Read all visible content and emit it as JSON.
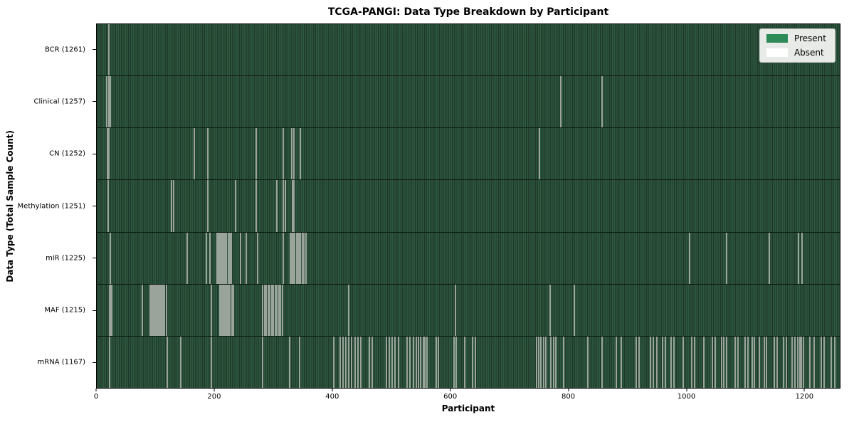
{
  "chart_data": {
    "type": "heatmap",
    "title": "TCGA-PANGI: Data Type Breakdown by Participant",
    "xlabel": "Participant",
    "ylabel": "Data Type (Total Sample Count)",
    "x_ticks": [
      0,
      200,
      400,
      600,
      800,
      1000,
      1200
    ],
    "x_max": 1261,
    "n_participants": 1262,
    "grid": false,
    "colors": {
      "present": "#2e8b57",
      "absent": "#ffffff",
      "plot_stripe_dark": "#1e3829",
      "plot_stripe_light": "#2e5840",
      "absent_line": "#9aa49b"
    },
    "legend": {
      "position": "upper right",
      "entries": [
        {
          "label": "Present",
          "color": "#2e8b57"
        },
        {
          "label": "Absent",
          "color": "#ffffff"
        }
      ]
    },
    "rows": [
      {
        "key": "bcr",
        "label": "BCR (1261)",
        "present_count": 1261,
        "absent_participants": [
          20
        ]
      },
      {
        "key": "clinical",
        "label": "Clinical (1257)",
        "present_count": 1257,
        "absent_participants": [
          17,
          20,
          23,
          788,
          858
        ]
      },
      {
        "key": "cn",
        "label": "CN (1252)",
        "present_count": 1252,
        "absent_participants": [
          18,
          21,
          165,
          188,
          271,
          316,
          331,
          334,
          345,
          751
        ]
      },
      {
        "key": "methylation",
        "label": "Methylation (1251)",
        "present_count": 1251,
        "absent_participants": [
          19,
          127,
          130,
          188,
          235,
          271,
          306,
          317,
          320,
          332,
          334
        ]
      },
      {
        "key": "mir",
        "label": "miR (1225)",
        "present_count": 1225,
        "absent_participants": [
          23,
          153,
          186,
          192,
          204,
          206,
          208,
          210,
          212,
          214,
          216,
          218,
          220,
          223,
          226,
          228,
          244,
          254,
          273,
          316,
          328,
          330,
          332,
          334,
          336,
          339,
          341,
          343,
          346,
          349,
          352,
          355,
          1006,
          1069,
          1141,
          1191,
          1197
        ]
      },
      {
        "key": "maf",
        "label": "MAF (1215)",
        "present_count": 1215,
        "absent_participants": [
          22,
          24,
          25,
          77,
          90,
          92,
          94,
          95,
          97,
          99,
          100,
          102,
          104,
          105,
          107,
          110,
          112,
          115,
          118,
          195,
          209,
          211,
          213,
          215,
          217,
          219,
          221,
          223,
          226,
          229,
          232,
          282,
          285,
          288,
          291,
          294,
          297,
          300,
          303,
          306,
          309,
          312,
          315,
          428,
          609,
          770,
          811
        ]
      },
      {
        "key": "mrna",
        "label": "mRNA (1167)",
        "present_count": 1167,
        "absent_participants": [
          22,
          120,
          143,
          195,
          282,
          327,
          344,
          402,
          413,
          418,
          423,
          428,
          433,
          438,
          443,
          448,
          463,
          468,
          491,
          496,
          501,
          506,
          512,
          527,
          532,
          537,
          542,
          546,
          550,
          554,
          557,
          560,
          576,
          580,
          606,
          610,
          624,
          638,
          642,
          746,
          750,
          754,
          758,
          762,
          771,
          775,
          779,
          792,
          833,
          858,
          882,
          890,
          915,
          920,
          940,
          945,
          950,
          960,
          965,
          975,
          980,
          995,
          1010,
          1015,
          1030,
          1045,
          1050,
          1060,
          1064,
          1069,
          1084,
          1088,
          1100,
          1105,
          1112,
          1116,
          1125,
          1133,
          1137,
          1150,
          1155,
          1165,
          1170,
          1180,
          1185,
          1190,
          1193,
          1196,
          1199,
          1210,
          1217,
          1230,
          1235,
          1247,
          1252
        ]
      }
    ]
  }
}
